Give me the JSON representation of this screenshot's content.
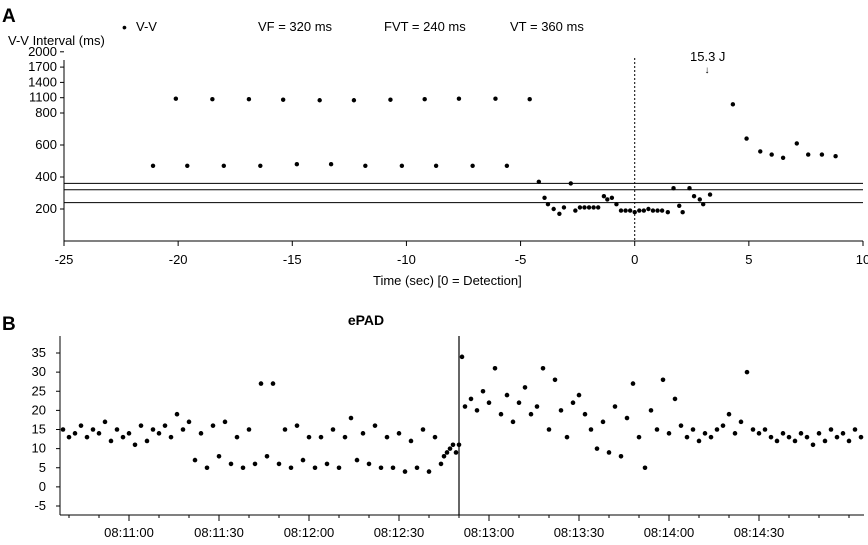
{
  "chart_data": [
    {
      "type": "scatter",
      "panel_label": "A",
      "title": "",
      "legend": {
        "marker": "•",
        "label": "V-V",
        "placement": "top-left"
      },
      "annotations": [
        "VF = 320 ms",
        "FVT = 240 ms",
        "VT = 360 ms"
      ],
      "ylabel": "V-V Interval (ms)",
      "xlabel": "Time (sec)   [0 = Detection]",
      "xlim": [
        -25,
        10
      ],
      "xticks": [
        -25,
        -20,
        -15,
        -10,
        -5,
        0,
        5,
        10
      ],
      "yticks": [
        200,
        400,
        600,
        800,
        1100,
        1400,
        1700,
        2000
      ],
      "ylim": [
        0,
        2000
      ],
      "y_scale": "nonlinear",
      "thresholds_ms": [
        240,
        320,
        360
      ],
      "detection_marker": {
        "x": 0,
        "style": "dotted vertical line"
      },
      "shock": {
        "label": "15.3 J",
        "x": 2.9
      },
      "series": [
        {
          "name": "V-V",
          "points": [
            [
              -21.1,
              470
            ],
            [
              -20.1,
              1080
            ],
            [
              -19.6,
              470
            ],
            [
              -18.5,
              1070
            ],
            [
              -18.0,
              470
            ],
            [
              -16.9,
              1070
            ],
            [
              -16.4,
              470
            ],
            [
              -15.4,
              1060
            ],
            [
              -14.8,
              480
            ],
            [
              -13.8,
              1050
            ],
            [
              -13.3,
              480
            ],
            [
              -12.3,
              1050
            ],
            [
              -11.8,
              470
            ],
            [
              -10.7,
              1060
            ],
            [
              -10.2,
              470
            ],
            [
              -9.2,
              1070
            ],
            [
              -8.7,
              470
            ],
            [
              -7.7,
              1080
            ],
            [
              -7.1,
              470
            ],
            [
              -6.1,
              1080
            ],
            [
              -5.6,
              470
            ],
            [
              -4.6,
              1070
            ],
            [
              -4.2,
              370
            ],
            [
              -3.95,
              270
            ],
            [
              -3.8,
              230
            ],
            [
              -3.55,
              200
            ],
            [
              -3.3,
              170
            ],
            [
              -3.1,
              210
            ],
            [
              -2.8,
              360
            ],
            [
              -2.6,
              190
            ],
            [
              -2.4,
              210
            ],
            [
              -2.2,
              210
            ],
            [
              -2.0,
              210
            ],
            [
              -1.8,
              210
            ],
            [
              -1.6,
              210
            ],
            [
              -1.35,
              280
            ],
            [
              -1.2,
              260
            ],
            [
              -1.0,
              270
            ],
            [
              -0.8,
              230
            ],
            [
              -0.6,
              190
            ],
            [
              -0.4,
              190
            ],
            [
              -0.2,
              190
            ],
            [
              0.0,
              180
            ],
            [
              0.2,
              190
            ],
            [
              0.4,
              190
            ],
            [
              0.6,
              200
            ],
            [
              0.8,
              190
            ],
            [
              1.0,
              190
            ],
            [
              1.2,
              190
            ],
            [
              1.45,
              180
            ],
            [
              1.7,
              330
            ],
            [
              1.95,
              220
            ],
            [
              2.1,
              180
            ],
            [
              2.4,
              330
            ],
            [
              2.6,
              280
            ],
            [
              2.85,
              260
            ],
            [
              3.0,
              230
            ],
            [
              3.3,
              290
            ],
            [
              4.3,
              970
            ],
            [
              4.9,
              640
            ],
            [
              5.5,
              560
            ],
            [
              6.0,
              540
            ],
            [
              6.5,
              520
            ],
            [
              7.1,
              610
            ],
            [
              7.6,
              540
            ],
            [
              8.2,
              540
            ],
            [
              8.8,
              530
            ]
          ]
        }
      ]
    },
    {
      "type": "scatter",
      "panel_label": "B",
      "title": "ePAD",
      "xlabel": "",
      "ylabel": "",
      "xlim": [
        "08:10:37",
        "08:15:05"
      ],
      "xticks": [
        "08:11:00",
        "08:11:30",
        "08:12:00",
        "08:12:30",
        "08:13:00",
        "08:13:30",
        "08:14:00",
        "08:14:30"
      ],
      "ylim": [
        -5,
        36
      ],
      "yticks": [
        -5,
        0,
        5,
        10,
        15,
        20,
        25,
        30,
        35
      ],
      "grid": false,
      "divider": {
        "time": "08:12:50",
        "style": "solid vertical line"
      },
      "series": [
        {
          "name": "",
          "points": [
            [
              "08:10:38",
              15
            ],
            [
              "08:10:40",
              13
            ],
            [
              "08:10:42",
              14
            ],
            [
              "08:10:44",
              16
            ],
            [
              "08:10:46",
              13
            ],
            [
              "08:10:48",
              15
            ],
            [
              "08:10:50",
              14
            ],
            [
              "08:10:52",
              17
            ],
            [
              "08:10:54",
              12
            ],
            [
              "08:10:56",
              15
            ],
            [
              "08:10:58",
              13
            ],
            [
              "08:11:00",
              14
            ],
            [
              "08:11:02",
              11
            ],
            [
              "08:11:04",
              16
            ],
            [
              "08:11:06",
              12
            ],
            [
              "08:11:08",
              15
            ],
            [
              "08:11:10",
              14
            ],
            [
              "08:11:12",
              16
            ],
            [
              "08:11:14",
              13
            ],
            [
              "08:11:16",
              19
            ],
            [
              "08:11:18",
              15
            ],
            [
              "08:11:20",
              17
            ],
            [
              "08:11:22",
              7
            ],
            [
              "08:11:24",
              14
            ],
            [
              "08:11:26",
              5
            ],
            [
              "08:11:28",
              16
            ],
            [
              "08:11:30",
              8
            ],
            [
              "08:11:32",
              17
            ],
            [
              "08:11:34",
              6
            ],
            [
              "08:11:36",
              13
            ],
            [
              "08:11:38",
              5
            ],
            [
              "08:11:40",
              15
            ],
            [
              "08:11:42",
              6
            ],
            [
              "08:11:44",
              27
            ],
            [
              "08:11:46",
              8
            ],
            [
              "08:11:48",
              27
            ],
            [
              "08:11:50",
              6
            ],
            [
              "08:11:52",
              15
            ],
            [
              "08:11:54",
              5
            ],
            [
              "08:11:56",
              16
            ],
            [
              "08:11:58",
              7
            ],
            [
              "08:12:00",
              13
            ],
            [
              "08:12:02",
              5
            ],
            [
              "08:12:04",
              13
            ],
            [
              "08:12:06",
              6
            ],
            [
              "08:12:08",
              15
            ],
            [
              "08:12:10",
              5
            ],
            [
              "08:12:12",
              13
            ],
            [
              "08:12:14",
              18
            ],
            [
              "08:12:16",
              7
            ],
            [
              "08:12:18",
              14
            ],
            [
              "08:12:20",
              6
            ],
            [
              "08:12:22",
              16
            ],
            [
              "08:12:24",
              5
            ],
            [
              "08:12:26",
              13
            ],
            [
              "08:12:28",
              5
            ],
            [
              "08:12:30",
              14
            ],
            [
              "08:12:32",
              4
            ],
            [
              "08:12:34",
              12
            ],
            [
              "08:12:36",
              5
            ],
            [
              "08:12:38",
              15
            ],
            [
              "08:12:40",
              4
            ],
            [
              "08:12:42",
              13
            ],
            [
              "08:12:44",
              6
            ],
            [
              "08:12:45",
              8
            ],
            [
              "08:12:46",
              9
            ],
            [
              "08:12:47",
              10
            ],
            [
              "08:12:48",
              11
            ],
            [
              "08:12:49",
              9
            ],
            [
              "08:12:50",
              11
            ],
            [
              "08:12:51",
              34
            ],
            [
              "08:12:52",
              21
            ],
            [
              "08:12:54",
              23
            ],
            [
              "08:12:56",
              20
            ],
            [
              "08:12:58",
              25
            ],
            [
              "08:13:00",
              22
            ],
            [
              "08:13:02",
              31
            ],
            [
              "08:13:04",
              19
            ],
            [
              "08:13:06",
              24
            ],
            [
              "08:13:08",
              17
            ],
            [
              "08:13:10",
              22
            ],
            [
              "08:13:12",
              26
            ],
            [
              "08:13:14",
              19
            ],
            [
              "08:13:16",
              21
            ],
            [
              "08:13:18",
              31
            ],
            [
              "08:13:20",
              15
            ],
            [
              "08:13:22",
              28
            ],
            [
              "08:13:24",
              20
            ],
            [
              "08:13:26",
              13
            ],
            [
              "08:13:28",
              22
            ],
            [
              "08:13:30",
              24
            ],
            [
              "08:13:32",
              19
            ],
            [
              "08:13:34",
              15
            ],
            [
              "08:13:36",
              10
            ],
            [
              "08:13:38",
              17
            ],
            [
              "08:13:40",
              9
            ],
            [
              "08:13:42",
              21
            ],
            [
              "08:13:44",
              8
            ],
            [
              "08:13:46",
              18
            ],
            [
              "08:13:48",
              27
            ],
            [
              "08:13:50",
              13
            ],
            [
              "08:13:52",
              5
            ],
            [
              "08:13:54",
              20
            ],
            [
              "08:13:56",
              15
            ],
            [
              "08:13:58",
              28
            ],
            [
              "08:14:00",
              14
            ],
            [
              "08:14:02",
              23
            ],
            [
              "08:14:04",
              16
            ],
            [
              "08:14:06",
              13
            ],
            [
              "08:14:08",
              15
            ],
            [
              "08:14:10",
              12
            ],
            [
              "08:14:12",
              14
            ],
            [
              "08:14:14",
              13
            ],
            [
              "08:14:16",
              15
            ],
            [
              "08:14:18",
              16
            ],
            [
              "08:14:20",
              19
            ],
            [
              "08:14:22",
              14
            ],
            [
              "08:14:24",
              17
            ],
            [
              "08:14:26",
              30
            ],
            [
              "08:14:28",
              15
            ],
            [
              "08:14:30",
              14
            ],
            [
              "08:14:32",
              15
            ],
            [
              "08:14:34",
              13
            ],
            [
              "08:14:36",
              12
            ],
            [
              "08:14:38",
              14
            ],
            [
              "08:14:40",
              13
            ],
            [
              "08:14:42",
              12
            ],
            [
              "08:14:44",
              14
            ],
            [
              "08:14:46",
              13
            ],
            [
              "08:14:48",
              11
            ],
            [
              "08:14:50",
              14
            ],
            [
              "08:14:52",
              12
            ],
            [
              "08:14:54",
              15
            ],
            [
              "08:14:56",
              13
            ],
            [
              "08:14:58",
              14
            ],
            [
              "08:15:00",
              12
            ],
            [
              "08:15:02",
              15
            ],
            [
              "08:15:04",
              13
            ]
          ]
        }
      ]
    }
  ]
}
